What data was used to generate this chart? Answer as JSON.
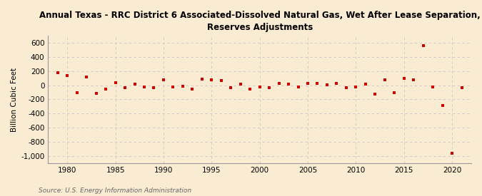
{
  "title": "Annual Texas - RRC District 6 Associated-Dissolved Natural Gas, Wet After Lease Separation,\nReserves Adjustments",
  "ylabel": "Billion Cubic Feet",
  "source": "Source: U.S. Energy Information Administration",
  "background_color": "#faecd2",
  "plot_background_color": "#faecd2",
  "marker_color": "#cc0000",
  "grid_color": "#c8c8c8",
  "years": [
    1979,
    1980,
    1981,
    1982,
    1983,
    1984,
    1985,
    1986,
    1987,
    1988,
    1989,
    1990,
    1991,
    1992,
    1993,
    1994,
    1995,
    1996,
    1997,
    1998,
    1999,
    2000,
    2001,
    2002,
    2003,
    2004,
    2005,
    2006,
    2007,
    2008,
    2009,
    2010,
    2011,
    2012,
    2013,
    2014,
    2015,
    2016,
    2017,
    2018,
    2019,
    2020,
    2021
  ],
  "values": [
    175,
    140,
    -100,
    120,
    -115,
    -55,
    40,
    -30,
    15,
    -25,
    -30,
    75,
    -20,
    -10,
    -50,
    90,
    80,
    70,
    -30,
    20,
    -55,
    -20,
    -30,
    25,
    20,
    -20,
    25,
    30,
    10,
    25,
    -30,
    -20,
    20,
    -120,
    75,
    -105,
    95,
    80,
    560,
    -25,
    -290,
    -960,
    -30
  ],
  "ylim": [
    -1100,
    700
  ],
  "yticks": [
    -1000,
    -800,
    -600,
    -400,
    -200,
    0,
    200,
    400,
    600
  ],
  "xlim": [
    1978,
    2022
  ],
  "xticks": [
    1980,
    1985,
    1990,
    1995,
    2000,
    2005,
    2010,
    2015,
    2020
  ]
}
